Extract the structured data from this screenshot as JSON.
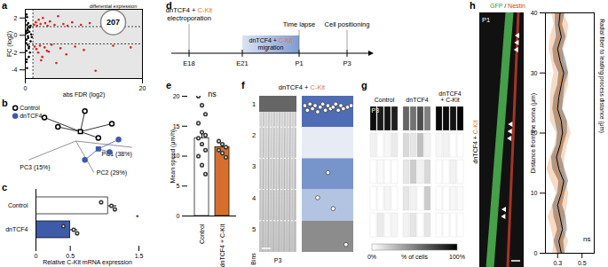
{
  "chart_data": [
    {
      "type": "scatter",
      "panel": "a",
      "x_label": "abs FDR (log2)",
      "y_label": "FC (log2)",
      "xlim": [
        0,
        20
      ],
      "xticks": [
        0,
        20
      ],
      "ylim": [
        -5,
        3
      ],
      "yticks": [
        -4,
        -2,
        0,
        2
      ],
      "threshold": {
        "x": 1.3,
        "y": [
          -1,
          1
        ]
      },
      "annotation": {
        "x": 15,
        "y": 1.5,
        "count": 207,
        "label": "differential expression"
      },
      "series": [
        {
          "color": "#000000",
          "x": [
            0.1,
            0.2,
            0.3,
            0.2,
            0.4,
            0.5,
            0.3,
            0.6,
            0.8,
            0.2,
            0.1,
            0.4,
            0.7,
            0.9,
            1.0,
            0.3,
            0.5,
            0.2,
            0.6,
            1.1,
            0.4,
            0.8,
            0.15,
            0.35,
            0.25,
            0.55,
            0.45,
            0.65,
            0.12,
            0.9
          ],
          "y": [
            0.2,
            -0.5,
            1.2,
            -1.8,
            0.6,
            -0.3,
            2.1,
            -2.5,
            0.9,
            -3.1,
            1.7,
            -1.1,
            0.4,
            -0.7,
            0.1,
            -3.8,
            1.4,
            2.4,
            -1.5,
            -0.2,
            0.8,
            -2.0,
            -0.9,
            0.3,
            -2.8,
            1.0,
            -0.1,
            -1.3,
            0.5,
            1.1
          ]
        },
        {
          "color": "#e0201b",
          "x": [
            1.5,
            1.8,
            2.0,
            2.3,
            2.6,
            3.0,
            3.4,
            3.8,
            4.2,
            5.0,
            5.6,
            6.5,
            7.2,
            8.0,
            9.5,
            11,
            13,
            16,
            1.6,
            1.9,
            2.2,
            2.5,
            2.9,
            3.3,
            3.7,
            4.5,
            5.3,
            6.0,
            7.0,
            8.5,
            10,
            12,
            15,
            18,
            2.7,
            4.0
          ],
          "y": [
            1.2,
            1.5,
            1.1,
            1.8,
            1.3,
            2.0,
            1.4,
            1.1,
            1.6,
            1.2,
            2.2,
            1.3,
            1.1,
            1.5,
            1.2,
            1.4,
            1.1,
            1.3,
            -1.3,
            -1.6,
            -2.0,
            -1.2,
            -2.5,
            -1.4,
            -1.8,
            -1.1,
            -3.2,
            -1.5,
            -2.2,
            -1.3,
            -1.7,
            -4.1,
            -1.2,
            -1.4,
            -2.9,
            -1.9
          ]
        }
      ]
    },
    {
      "type": "scatter",
      "panel": "b",
      "axes": [
        "PC1 (38%)",
        "PC2 (29%)",
        "PC3 (15%)"
      ],
      "legend": "top-left",
      "tick_labels": false,
      "series": [
        {
          "name": "Control",
          "marker": "open",
          "color": "#000000",
          "x": [
            -0.7,
            -0.4,
            0.2,
            0.8,
            0.5
          ],
          "y": [
            0.75,
            0.45,
            0.95,
            0.55,
            0.1
          ],
          "center": [
            0.1,
            0.3
          ]
        },
        {
          "name": "dnTCF4",
          "marker": "filled",
          "color": "#3d5ba9",
          "x": [
            0.75,
            0.2,
            0.95
          ],
          "y": [
            -0.35,
            -0.6,
            0.05
          ],
          "center": [
            0.5,
            -0.25
          ]
        }
      ]
    },
    {
      "type": "bar",
      "panel": "c",
      "orientation": "horizontal",
      "categories": [
        "Control",
        "dnTCF4"
      ],
      "values": [
        1.05,
        0.5
      ],
      "error": [
        0.12,
        0.1
      ],
      "points": [
        [
          0.95,
          1.1,
          1.15
        ],
        [
          0.4,
          0.55,
          0.6
        ]
      ],
      "colors": [
        "#ffffff",
        "#3d5ba9"
      ],
      "x_label": "Relative C-Kit mRNA expression",
      "xlim": [
        0,
        1.5
      ],
      "xticks": [
        0,
        0.5,
        1.5
      ],
      "annotation": "*"
    },
    {
      "type": "diagram",
      "panel": "d",
      "stages": [
        "E18",
        "E21",
        "P1",
        "P3"
      ],
      "events": [
        {
          "stage": "E18",
          "text": [
            "dnTCF4 + C-Kit",
            "electroporation"
          ]
        },
        {
          "stage": "P1",
          "text": [
            "Time lapse"
          ]
        },
        {
          "stage": "P3",
          "text": [
            "Cell positioning"
          ]
        }
      ],
      "period": {
        "from": "E21",
        "to": "P1",
        "text": [
          "dnTCF4 + C-Kit",
          "migration"
        ]
      }
    },
    {
      "type": "bar",
      "panel": "e",
      "categories": [
        "Control",
        "dnTCF4 + C-Kit"
      ],
      "values": [
        13,
        11.5
      ],
      "error": [
        1.2,
        0.8
      ],
      "points": [
        [
          20,
          18.5,
          17,
          15.5,
          14,
          13.5,
          13,
          12,
          11,
          10,
          8.5,
          7
        ],
        [
          12.5,
          12,
          11.5,
          11,
          10.5,
          9.8
        ]
      ],
      "colors": [
        "#ffffff",
        "#d66f2e"
      ],
      "y_label": "Mean speed (μm/h)",
      "ylim": [
        0,
        20
      ],
      "yticks": [
        0,
        5,
        10,
        15,
        20
      ],
      "annotation": "ns"
    },
    {
      "type": "scatter",
      "panel": "f",
      "title": "dnTCF4 + C-Kit",
      "bins": [
        1,
        2,
        3,
        4,
        5
      ],
      "bins_label": "Bins",
      "label": "P3",
      "tick_labels": false,
      "colors": [
        "#4e6db5",
        "#e6ebf4",
        "#7895cb",
        "#b3c4e3",
        "#8c8c8c"
      ],
      "xlim": [
        0,
        1
      ],
      "ylim": [
        0,
        5
      ],
      "x": [
        0.05,
        0.1,
        0.15,
        0.2,
        0.25,
        0.3,
        0.35,
        0.4,
        0.45,
        0.5,
        0.55,
        0.6,
        0.65,
        0.7,
        0.75,
        0.8,
        0.88,
        0.95,
        0.5,
        0.3,
        0.6,
        0.85
      ],
      "y": [
        0.3,
        0.45,
        0.25,
        0.4,
        0.3,
        0.5,
        0.35,
        0.25,
        0.45,
        0.3,
        0.4,
        0.35,
        0.25,
        0.45,
        0.3,
        0.4,
        0.35,
        0.3,
        2.45,
        3.25,
        3.6,
        4.75
      ]
    },
    {
      "type": "heatmap",
      "panel": "g",
      "label": "P3",
      "conditions": [
        "Control",
        "dnTCF4",
        "dnTCF4 + C-Kit"
      ],
      "cells": [
        [
          [
            95,
            90,
            92,
            88
          ],
          [
            5,
            0,
            3,
            8
          ],
          [
            0,
            2,
            0,
            0
          ],
          [
            0,
            0,
            4,
            0
          ],
          [
            0,
            8,
            1,
            4
          ]
        ],
        [
          [
            60,
            55,
            70,
            50
          ],
          [
            15,
            10,
            25,
            5
          ],
          [
            10,
            20,
            5,
            15
          ],
          [
            10,
            5,
            0,
            20
          ],
          [
            5,
            10,
            0,
            10
          ]
        ],
        [
          [
            97,
            95,
            92,
            98
          ],
          [
            3,
            5,
            0,
            0
          ],
          [
            0,
            0,
            5,
            0
          ],
          [
            0,
            0,
            3,
            2
          ],
          [
            0,
            0,
            0,
            0
          ]
        ]
      ],
      "colorbar": {
        "range": [
          0,
          100
        ],
        "ticks": [
          {
            "value": 0,
            "label": "0%"
          },
          {
            "value": 100,
            "label": "100%"
          }
        ],
        "label": "% of cells"
      }
    },
    {
      "type": "line",
      "panel": "h",
      "image_title": "GFP / Nestin",
      "image_label": "P1",
      "image_side": "dnTCF4 + C-Kit",
      "y_label": "Distance from the soma (μm)",
      "x_label": "Radial fiber to leading process distance (μm)",
      "annotation": "ns",
      "xlim": [
        0.2,
        0.6
      ],
      "xticks": [
        0.3,
        0.5
      ],
      "ylim": [
        0,
        40
      ],
      "yticks": [
        0,
        10,
        20,
        30,
        40
      ],
      "y": [
        0,
        2,
        4,
        6,
        8,
        10,
        12,
        14,
        16,
        18,
        20,
        22,
        24,
        26,
        28,
        30,
        32,
        34,
        36,
        38,
        40
      ],
      "series": [
        {
          "color": "#e8833a",
          "values": [
            0.31,
            0.33,
            0.3,
            0.29,
            0.32,
            0.34,
            0.31,
            0.28,
            0.3,
            0.33,
            0.35,
            0.31,
            0.29,
            0.3,
            0.32,
            0.33,
            0.3,
            0.29,
            0.31,
            0.33,
            0.3
          ],
          "error": [
            0.05,
            0.06,
            0.05,
            0.07,
            0.06,
            0.05,
            0.06,
            0.07,
            0.06,
            0.05,
            0.06,
            0.07,
            0.05,
            0.06,
            0.07,
            0.06,
            0.05,
            0.06,
            0.07,
            0.06,
            0.05
          ]
        },
        {
          "color": "#000000",
          "values": [
            0.33,
            0.31,
            0.34,
            0.32,
            0.3,
            0.33,
            0.35,
            0.31,
            0.29,
            0.32,
            0.34,
            0.33,
            0.3,
            0.31,
            0.33,
            0.35,
            0.32,
            0.3,
            0.33,
            0.31,
            0.32
          ],
          "error": [
            0.03,
            0.04,
            0.04,
            0.05,
            0.04,
            0.03,
            0.04,
            0.05,
            0.04,
            0.03,
            0.04,
            0.05,
            0.04,
            0.04,
            0.03,
            0.04,
            0.05,
            0.04,
            0.04,
            0.03,
            0.04
          ]
        }
      ]
    }
  ]
}
